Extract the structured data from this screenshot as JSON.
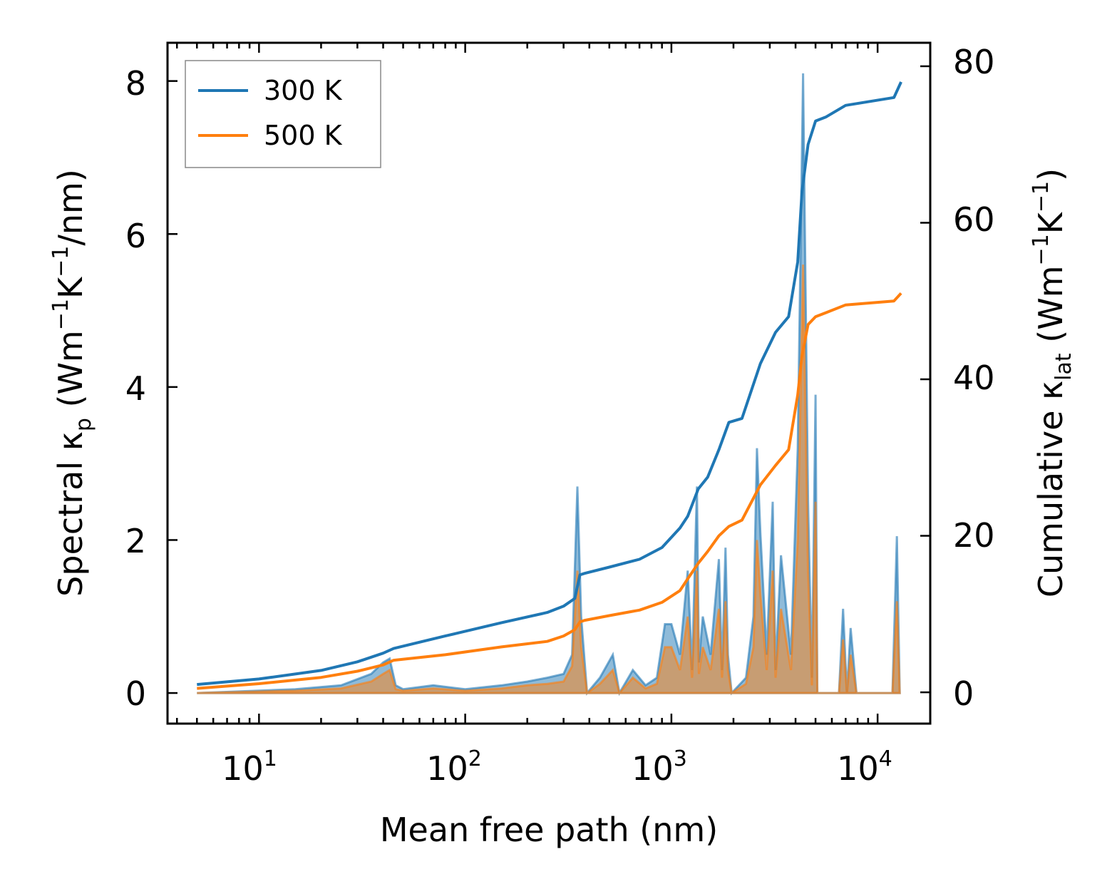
{
  "chart_data": {
    "type": "line",
    "xlabel": "Mean free path (nm)",
    "ylabel_left": {
      "text": "Spectral κ",
      "sub": "p",
      "unit_open": " (Wm",
      "sup1": "−1",
      "mid": "K",
      "sup2": "−1",
      "unit_close": "/nm)"
    },
    "ylabel_right": {
      "text": "Cumulative κ",
      "sub": "lat",
      "unit_open": " (Wm",
      "sup1": "−1",
      "mid": "K",
      "sup2": "−1",
      "unit_close": ")"
    },
    "xscale": "log",
    "xlim": [
      3.6,
      18000
    ],
    "x_ticks": [
      {
        "base": "10",
        "exp": "1",
        "value": 10
      },
      {
        "base": "10",
        "exp": "2",
        "value": 100
      },
      {
        "base": "10",
        "exp": "3",
        "value": 1000
      },
      {
        "base": "10",
        "exp": "4",
        "value": 10000
      }
    ],
    "ylim_left": [
      -0.4,
      8.5
    ],
    "yticks_left": [
      "0",
      "2",
      "4",
      "6",
      "8"
    ],
    "ylim_right": [
      -4,
      83
    ],
    "yticks_right": [
      "0",
      "20",
      "40",
      "60",
      "80"
    ],
    "legend": {
      "position": "upper-left",
      "entries": [
        {
          "label": "300 K",
          "color": "#1f77b4"
        },
        {
          "label": "500 K",
          "color": "#ff7f0e"
        }
      ]
    },
    "series": [
      {
        "name": "300 K",
        "kind": "cumulative",
        "axis": "right",
        "color": "#1f77b4",
        "x": [
          5,
          10,
          20,
          30,
          40,
          45,
          80,
          150,
          250,
          300,
          340,
          360,
          380,
          500,
          700,
          900,
          1100,
          1200,
          1350,
          1500,
          1700,
          1900,
          2200,
          2700,
          3200,
          3700,
          4100,
          4300,
          4600,
          5000,
          5600,
          7000,
          12000,
          13000
        ],
        "y": [
          1,
          1.7,
          2.8,
          3.9,
          5,
          5.6,
          7.2,
          8.9,
          10.2,
          11,
          12,
          15,
          15.2,
          16,
          17,
          18.5,
          21,
          22.5,
          26,
          27.5,
          31,
          34.5,
          35,
          42,
          46,
          48,
          55,
          64,
          70,
          73,
          73.5,
          75,
          76,
          78
        ]
      },
      {
        "name": "500 K",
        "kind": "cumulative",
        "axis": "right",
        "color": "#ff7f0e",
        "x": [
          5,
          10,
          20,
          30,
          40,
          45,
          80,
          150,
          250,
          300,
          340,
          360,
          380,
          500,
          700,
          900,
          1100,
          1200,
          1350,
          1500,
          1700,
          1900,
          2200,
          2700,
          3200,
          3700,
          4100,
          4300,
          4600,
          5000,
          5600,
          7000,
          12000,
          13000
        ],
        "y": [
          0.5,
          1.1,
          1.9,
          2.7,
          3.5,
          4.1,
          4.8,
          5.8,
          6.5,
          7.2,
          8,
          9,
          9.2,
          9.8,
          10.5,
          11.5,
          13,
          14.5,
          16.5,
          18,
          20,
          21.2,
          22,
          26.5,
          29,
          31,
          38,
          43,
          47,
          48,
          48.5,
          49.5,
          50,
          51
        ]
      },
      {
        "name": "300 K spectral",
        "kind": "spectral",
        "axis": "left",
        "color": "#1f77b4",
        "x": [
          5,
          15,
          25,
          35,
          40,
          43,
          46,
          50,
          70,
          100,
          150,
          200,
          250,
          300,
          330,
          350,
          365,
          390,
          450,
          520,
          560,
          650,
          750,
          850,
          930,
          1000,
          1100,
          1200,
          1260,
          1330,
          1360,
          1420,
          1550,
          1700,
          1760,
          1830,
          1880,
          1960,
          2300,
          2500,
          2600,
          2700,
          2900,
          3100,
          3200,
          3400,
          3800,
          4100,
          4350,
          4600,
          4800,
          5000,
          5100,
          5300,
          5600,
          6500,
          6800,
          7100,
          7400,
          7900,
          11000,
          11800,
          12400,
          12800
        ],
        "y": [
          0,
          0.05,
          0.1,
          0.25,
          0.4,
          0.45,
          0.1,
          0.05,
          0.1,
          0.05,
          0.1,
          0.15,
          0.2,
          0.25,
          0.5,
          2.7,
          1.0,
          0,
          0.2,
          0.5,
          0,
          0.3,
          0.1,
          0.2,
          0.9,
          0.9,
          0.5,
          1.6,
          0.3,
          2.7,
          0.4,
          1.0,
          0.5,
          1.75,
          0.3,
          1.9,
          0.5,
          0,
          0.2,
          1.0,
          3.2,
          2.1,
          0.5,
          2.5,
          0.3,
          1.8,
          0.5,
          3.2,
          8.1,
          2.5,
          0.2,
          3.9,
          0,
          0,
          0,
          0,
          1.1,
          0,
          0.85,
          0,
          0,
          0,
          2.05,
          0
        ]
      },
      {
        "name": "500 K spectral",
        "kind": "spectral",
        "axis": "left",
        "color": "#ff7f0e",
        "x": [
          5,
          15,
          25,
          35,
          40,
          43,
          46,
          50,
          70,
          100,
          150,
          200,
          250,
          300,
          330,
          350,
          365,
          390,
          450,
          520,
          560,
          650,
          750,
          850,
          930,
          1000,
          1100,
          1200,
          1260,
          1330,
          1360,
          1420,
          1550,
          1700,
          1760,
          1830,
          1880,
          1960,
          2300,
          2500,
          2600,
          2700,
          2900,
          3100,
          3200,
          3400,
          3800,
          4100,
          4350,
          4600,
          4800,
          5000,
          5100,
          5300,
          5600,
          6500,
          6800,
          7100,
          7400,
          7900,
          11000,
          11800,
          12400,
          12800
        ],
        "y": [
          0,
          0.03,
          0.06,
          0.15,
          0.25,
          0.3,
          0.05,
          0.03,
          0.06,
          0.03,
          0.06,
          0.1,
          0.12,
          0.15,
          0.35,
          1.6,
          0.6,
          0,
          0.12,
          0.3,
          0,
          0.2,
          0.06,
          0.12,
          0.6,
          0.6,
          0.3,
          1.0,
          0.2,
          1.6,
          0.25,
          0.6,
          0.3,
          1.1,
          0.2,
          1.2,
          0.3,
          0,
          0.12,
          0.6,
          2.0,
          1.3,
          0.3,
          1.6,
          0.2,
          1.1,
          0.3,
          2.0,
          5.6,
          1.6,
          0.1,
          2.5,
          0,
          0,
          0,
          0,
          0.7,
          0,
          0.5,
          0,
          0,
          0,
          1.2,
          0
        ]
      }
    ]
  }
}
